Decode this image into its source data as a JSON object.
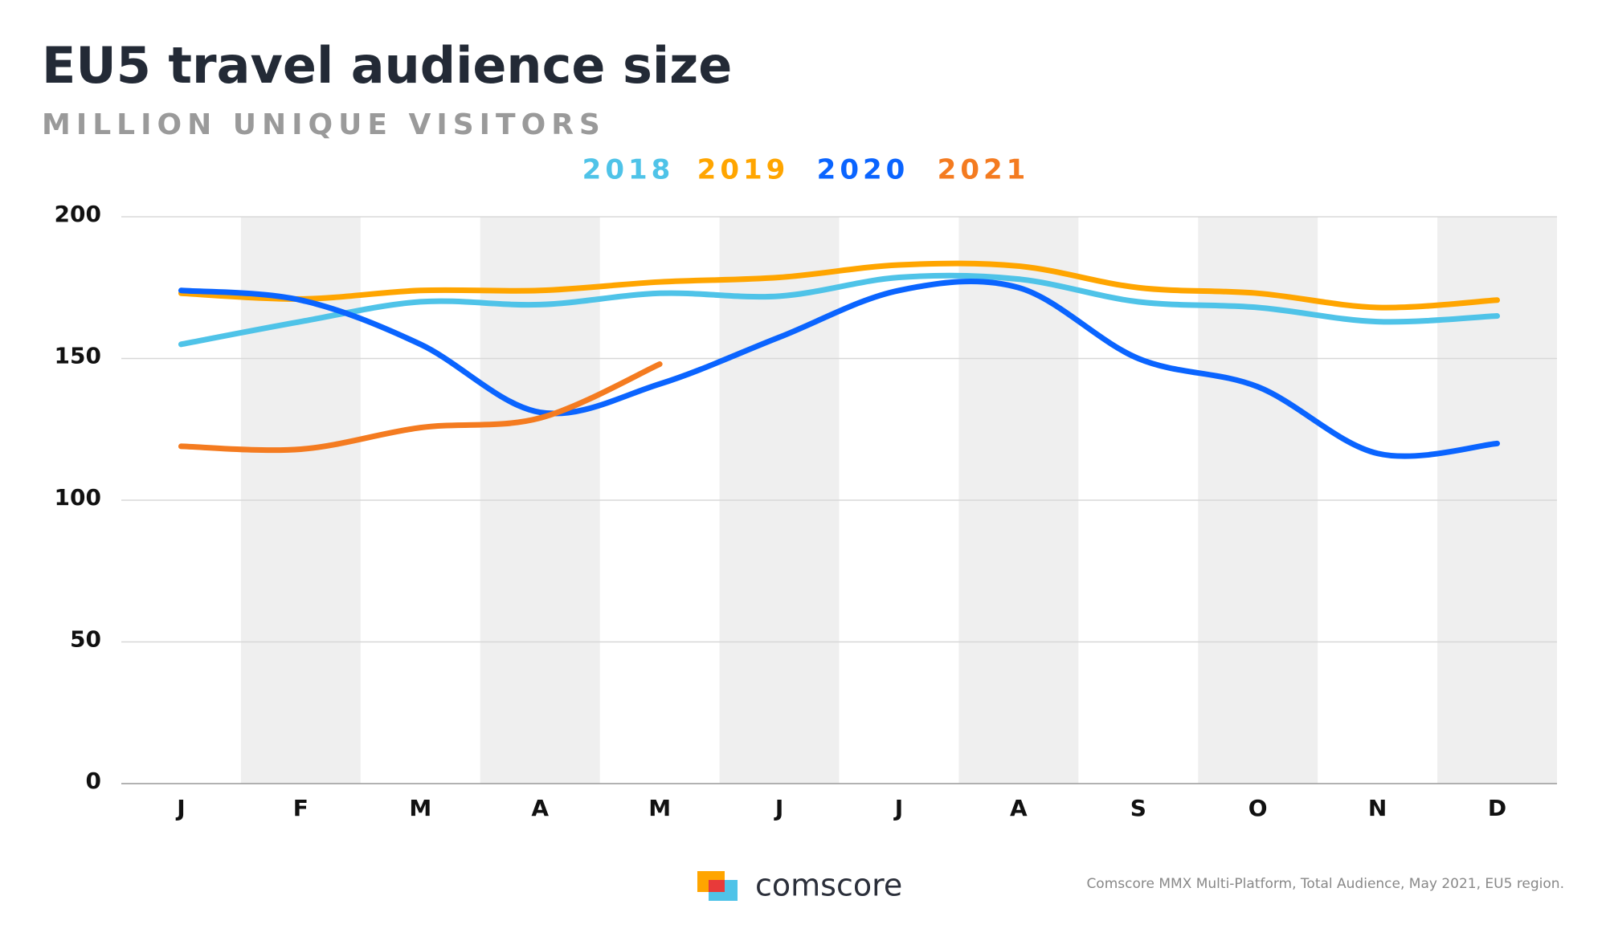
{
  "chart_data": {
    "type": "line",
    "title": "EU5 travel audience size",
    "subtitle": "MILLION UNIQUE VISITORS",
    "categories": [
      "J",
      "F",
      "M",
      "A",
      "M",
      "J",
      "J",
      "A",
      "S",
      "O",
      "N",
      "D"
    ],
    "series": [
      {
        "name": "2018",
        "color": "#4fc3e8",
        "values": [
          155,
          163,
          170,
          169,
          173,
          172,
          178.6,
          178,
          170,
          168,
          163,
          165
        ]
      },
      {
        "name": "2019",
        "color": "#ffa500",
        "values": [
          173,
          171,
          174,
          174,
          177,
          178.6,
          183,
          182.6,
          175,
          173,
          168,
          170.6
        ]
      },
      {
        "name": "2020",
        "color": "#0a64ff",
        "values": [
          174,
          170.6,
          155,
          131,
          141,
          157.5,
          174,
          175,
          150,
          140,
          116.5,
          120
        ]
      },
      {
        "name": "2021",
        "color": "#f47b20",
        "values": [
          119,
          118,
          125.6,
          129,
          148,
          null,
          null,
          null,
          null,
          null,
          null,
          null
        ]
      }
    ],
    "ylim": [
      0,
      200
    ],
    "yticks": [
      0,
      50,
      100,
      150,
      200
    ],
    "grid": true,
    "logo": "comscore",
    "source": "Comscore MMX Multi-Platform, Total Audience, May 2021, EU5 region."
  }
}
